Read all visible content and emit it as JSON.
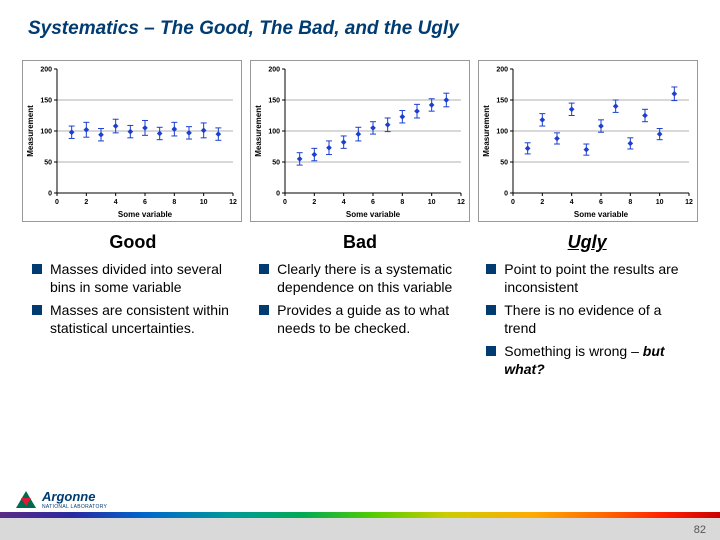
{
  "slide": {
    "title": "Systematics – The Good, The Bad, and the Ugly",
    "title_fontsize": 19,
    "page_number": "82",
    "logo_text": "Argonne",
    "logo_sub": "NATIONAL LABORATORY"
  },
  "typography": {
    "heading_fontsize": 18,
    "bullet_fontsize": 14
  },
  "colors": {
    "title": "#003b71",
    "bullet_square": "#003b71",
    "marker": "#1c3fcf",
    "axis": "#000000",
    "grid": "#666666",
    "plot_bg": "#ffffff",
    "panel_border": "#999999",
    "footer_gray": "#d9d9d9"
  },
  "chart_common": {
    "type": "scatter-with-errorbars",
    "xlim": [
      0,
      12
    ],
    "ylim": [
      0,
      200
    ],
    "xticks": [
      0,
      2,
      4,
      6,
      8,
      10,
      12
    ],
    "yticks": [
      0,
      50,
      100,
      150,
      200
    ],
    "ygrid_at": [
      50,
      100,
      150
    ],
    "xlabel": "Some variable",
    "ylabel": "Measurement",
    "label_fontsize": 8,
    "tick_fontsize": 7,
    "marker_size": 4,
    "errorbar_halfwidth": 6
  },
  "charts": [
    {
      "heading": "Good",
      "points": [
        {
          "x": 1,
          "y": 98,
          "err": 10
        },
        {
          "x": 2,
          "y": 102,
          "err": 12
        },
        {
          "x": 3,
          "y": 94,
          "err": 10
        },
        {
          "x": 4,
          "y": 108,
          "err": 11
        },
        {
          "x": 5,
          "y": 99,
          "err": 10
        },
        {
          "x": 6,
          "y": 105,
          "err": 12
        },
        {
          "x": 7,
          "y": 96,
          "err": 10
        },
        {
          "x": 8,
          "y": 103,
          "err": 11
        },
        {
          "x": 9,
          "y": 97,
          "err": 10
        },
        {
          "x": 10,
          "y": 101,
          "err": 12
        },
        {
          "x": 11,
          "y": 95,
          "err": 10
        }
      ]
    },
    {
      "heading": "Bad",
      "points": [
        {
          "x": 1,
          "y": 55,
          "err": 10
        },
        {
          "x": 2,
          "y": 62,
          "err": 10
        },
        {
          "x": 3,
          "y": 73,
          "err": 11
        },
        {
          "x": 4,
          "y": 82,
          "err": 10
        },
        {
          "x": 5,
          "y": 95,
          "err": 11
        },
        {
          "x": 6,
          "y": 105,
          "err": 10
        },
        {
          "x": 7,
          "y": 110,
          "err": 11
        },
        {
          "x": 8,
          "y": 123,
          "err": 10
        },
        {
          "x": 9,
          "y": 132,
          "err": 11
        },
        {
          "x": 10,
          "y": 142,
          "err": 10
        },
        {
          "x": 11,
          "y": 150,
          "err": 11
        }
      ]
    },
    {
      "heading": "Ugly",
      "points": [
        {
          "x": 1,
          "y": 72,
          "err": 9
        },
        {
          "x": 2,
          "y": 118,
          "err": 10
        },
        {
          "x": 3,
          "y": 88,
          "err": 9
        },
        {
          "x": 4,
          "y": 135,
          "err": 10
        },
        {
          "x": 5,
          "y": 70,
          "err": 9
        },
        {
          "x": 6,
          "y": 108,
          "err": 10
        },
        {
          "x": 7,
          "y": 140,
          "err": 10
        },
        {
          "x": 8,
          "y": 80,
          "err": 9
        },
        {
          "x": 9,
          "y": 125,
          "err": 10
        },
        {
          "x": 10,
          "y": 95,
          "err": 9
        },
        {
          "x": 11,
          "y": 160,
          "err": 11
        }
      ]
    }
  ],
  "columns": [
    {
      "heading": "Good",
      "heading_class": "",
      "bullets": [
        "Masses divided into several bins in some variable",
        "Masses are consistent within statistical uncertainties."
      ]
    },
    {
      "heading": "Bad",
      "heading_class": "",
      "bullets": [
        "Clearly there is a systematic dependence on this variable",
        "Provides a guide as to what needs to be checked."
      ]
    },
    {
      "heading": "Ugly",
      "heading_class": "ugly",
      "bullets": [
        "Point to point the results are inconsistent",
        "There is no evidence of a trend",
        "Something is wrong – <span class=\"em\">but what?</span>"
      ]
    }
  ]
}
